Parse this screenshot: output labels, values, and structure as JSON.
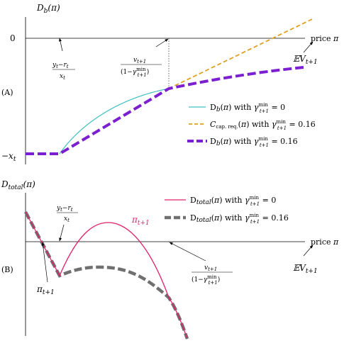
{
  "chart_data": [
    {
      "type": "line",
      "panel_label": "(A)",
      "ylabel": "D_b(π)",
      "y_zero_label": "0",
      "y_min_label": "−x_t",
      "xlabel": "price π",
      "annotations": {
        "kink": "(y_t − r_t) / x_t",
        "threshold": "v_{t+1} / (1 − γ^min_{t+1})",
        "expected_value": "𝔼V_{t+1}"
      },
      "series": [
        {
          "name": "D_b(π) with γ^min_{t+1} = 0",
          "color": "#40c0c0",
          "style": "solid-thin"
        },
        {
          "name": "C_cap. req.(π) with γ^min_{t+1} = 0.16",
          "color": "#e0a020",
          "style": "dashed"
        },
        {
          "name": "D_b(π) with γ^min_{t+1} = 0.16",
          "color": "#7b1fd0",
          "style": "dashed-thick"
        }
      ]
    },
    {
      "type": "line",
      "panel_label": "(B)",
      "ylabel": "D_total(π)",
      "xlabel": "price π",
      "annotations": {
        "kink": "(y_t − r_t) / x_t",
        "pi_low": "π_{t+1}",
        "pi_high": "π_{t+1}",
        "threshold": "v_{t+1} / (1 − γ^min_{t+1})",
        "expected_value": "𝔼V_{t+1}"
      },
      "series": [
        {
          "name": "D_total(π) with γ^min_{t+1} = 0",
          "color": "#e0206a",
          "style": "solid"
        },
        {
          "name": "D_total(π) with γ^min_{t+1} = 0.16",
          "color": "#707070",
          "style": "dashed-thick"
        }
      ]
    }
  ]
}
